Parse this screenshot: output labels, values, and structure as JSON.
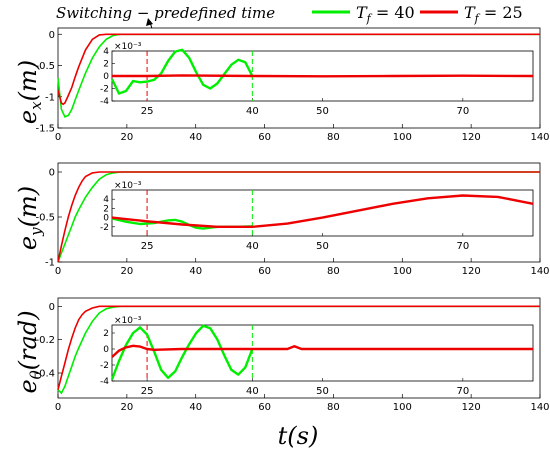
{
  "colors": {
    "green": "#00ee00",
    "red": "#ee0000"
  },
  "legend": {
    "annotation": "Switching − predefined time",
    "items": [
      {
        "label": "T_f = 40",
        "tex_main": "T",
        "tex_sub": "f",
        "tex_rest": " = 40",
        "color": "#00ee00"
      },
      {
        "label": "T_f = 25",
        "tex_main": "T",
        "tex_sub": "f",
        "tex_rest": " = 25",
        "color": "#ee0000"
      }
    ]
  },
  "xlabel": "t(s)",
  "chart_data": [
    {
      "type": "line",
      "ylabel": "e_x(m)",
      "ylabel_main": "e",
      "ylabel_sub": "x",
      "ylabel_rest": "(m)",
      "xlim": [
        0,
        140
      ],
      "ylim": [
        -1.5,
        0.1
      ],
      "xticks": [
        0,
        20,
        40,
        60,
        80,
        100,
        120,
        140
      ],
      "xticklabels": [
        "0",
        "20",
        "40",
        "60",
        "80",
        "100",
        "120",
        "140"
      ],
      "yticks": [
        -1.5,
        -1,
        -0.5,
        0
      ],
      "yticklabels": [
        "-1.5",
        "-1",
        "-0.5",
        "0"
      ],
      "series": [
        {
          "name": "T_f = 40",
          "color": "#00ee00",
          "x": [
            0,
            1,
            2,
            3,
            4,
            5,
            6,
            8,
            10,
            12,
            14,
            16,
            18,
            20,
            140
          ],
          "y": [
            -0.7,
            -1.2,
            -1.32,
            -1.3,
            -1.2,
            -1.05,
            -0.9,
            -0.62,
            -0.38,
            -0.2,
            -0.08,
            -0.02,
            0,
            0,
            0
          ]
        },
        {
          "name": "T_f = 25",
          "color": "#ee0000",
          "x": [
            0,
            1,
            1.5,
            2,
            3,
            4,
            5,
            6,
            8,
            10,
            12,
            14,
            140
          ],
          "y": [
            -0.9,
            -1.1,
            -1.12,
            -1.1,
            -0.98,
            -0.85,
            -0.68,
            -0.52,
            -0.25,
            -0.08,
            -0.01,
            0,
            0
          ]
        }
      ],
      "inset": {
        "xlim": [
          20,
          80
        ],
        "ylim": [
          -4,
          4
        ],
        "exponent": "×10⁻³",
        "xticks": [
          25,
          40,
          50,
          70
        ],
        "xticklabels": [
          "25",
          "40",
          "50",
          "70"
        ],
        "yticks": [
          -4,
          -2,
          0,
          2,
          4
        ],
        "yticklabels": [
          "-4",
          "-2",
          "0",
          "2",
          "4"
        ],
        "marks": [
          {
            "x": 25,
            "color": "#ee0000"
          },
          {
            "x": 40,
            "color": "#00ee00"
          }
        ],
        "series": [
          {
            "color": "#00ee00",
            "x": [
              20,
              21,
              22,
              23,
              24,
              25,
              26,
              27,
              28,
              29,
              30,
              31,
              32,
              33,
              34,
              35,
              36,
              37,
              38,
              39,
              40
            ],
            "y": [
              -0.5,
              -2.8,
              -2.4,
              -0.8,
              -1,
              -0.9,
              -0.6,
              0.4,
              2.4,
              3.9,
              4.2,
              2.9,
              0.6,
              -1.4,
              -2,
              -1.2,
              0.3,
              1.8,
              2.6,
              2.2,
              0
            ]
          },
          {
            "color": "#ee0000",
            "x": [
              20,
              25,
              30,
              40,
              50,
              60,
              70,
              80
            ],
            "y": [
              0,
              0,
              0.1,
              0,
              -0.05,
              0,
              0.05,
              0
            ]
          }
        ]
      }
    },
    {
      "type": "line",
      "ylabel": "e_y(m)",
      "ylabel_main": "e",
      "ylabel_sub": "y",
      "ylabel_rest": "(m)",
      "xlim": [
        0,
        140
      ],
      "ylim": [
        -1,
        0.1
      ],
      "xticks": [
        0,
        20,
        40,
        60,
        80,
        100,
        120,
        140
      ],
      "xticklabels": [
        "0",
        "20",
        "40",
        "60",
        "80",
        "100",
        "120",
        "140"
      ],
      "yticks": [
        -1,
        -0.5,
        0
      ],
      "yticklabels": [
        "-1",
        "-0.5",
        "0"
      ],
      "series": [
        {
          "name": "T_f = 40",
          "color": "#00ee00",
          "x": [
            0,
            1,
            2,
            3,
            4,
            5,
            6,
            8,
            10,
            12,
            14,
            16,
            18,
            20,
            140
          ],
          "y": [
            -1,
            -0.9,
            -0.8,
            -0.7,
            -0.6,
            -0.5,
            -0.42,
            -0.28,
            -0.17,
            -0.08,
            -0.03,
            -0.01,
            0,
            0,
            0
          ]
        },
        {
          "name": "T_f = 25",
          "color": "#ee0000",
          "x": [
            0,
            1,
            2,
            3,
            4,
            5,
            6,
            7,
            8,
            10,
            12,
            14,
            140
          ],
          "y": [
            -1,
            -0.82,
            -0.65,
            -0.5,
            -0.37,
            -0.26,
            -0.17,
            -0.1,
            -0.05,
            -0.01,
            0,
            0,
            0
          ]
        }
      ],
      "inset": {
        "xlim": [
          20,
          80
        ],
        "ylim": [
          -4,
          6
        ],
        "exponent": "×10⁻³",
        "xticks": [
          25,
          40,
          50,
          70
        ],
        "xticklabels": [
          "25",
          "40",
          "50",
          "70"
        ],
        "yticks": [
          -2,
          0,
          2,
          4
        ],
        "yticklabels": [
          "-2",
          "0",
          "2",
          "4"
        ],
        "marks": [
          {
            "x": 25,
            "color": "#ee0000"
          },
          {
            "x": 40,
            "color": "#00ee00"
          }
        ],
        "series": [
          {
            "color": "#00ee00",
            "x": [
              20,
              22,
              24,
              26,
              28,
              29,
              30,
              31,
              32,
              33,
              34,
              35,
              36,
              38,
              40
            ],
            "y": [
              -0.2,
              -0.9,
              -1.4,
              -1.2,
              -0.6,
              -0.5,
              -0.9,
              -1.6,
              -2.2,
              -2.4,
              -2.2,
              -2.0,
              -2.0,
              -2.0,
              -1.9
            ]
          },
          {
            "color": "#ee0000",
            "x": [
              20,
              25,
              30,
              35,
              40,
              45,
              50,
              55,
              60,
              65,
              70,
              75,
              80
            ],
            "y": [
              0,
              -0.8,
              -1.5,
              -2,
              -2,
              -1.3,
              0,
              1.5,
              3,
              4.2,
              4.8,
              4.5,
              3
            ]
          }
        ]
      }
    },
    {
      "type": "line",
      "ylabel": "e_θ(rad)",
      "ylabel_main": "e",
      "ylabel_sub": "θ",
      "ylabel_rest": "(rad)",
      "xlim": [
        0,
        140
      ],
      "ylim": [
        -0.55,
        0.05
      ],
      "xticks": [
        0,
        20,
        40,
        60,
        80,
        100,
        120,
        140
      ],
      "xticklabels": [
        "0",
        "20",
        "40",
        "60",
        "80",
        "100",
        "120",
        "140"
      ],
      "yticks": [
        -0.4,
        -0.2,
        0
      ],
      "yticklabels": [
        "-0.4",
        "-0.2",
        "0"
      ],
      "series": [
        {
          "name": "T_f = 40",
          "color": "#00ee00",
          "x": [
            0,
            1,
            2,
            3,
            4,
            5,
            6,
            8,
            10,
            12,
            14,
            16,
            18,
            20,
            140
          ],
          "y": [
            -0.5,
            -0.52,
            -0.48,
            -0.42,
            -0.36,
            -0.3,
            -0.25,
            -0.16,
            -0.09,
            -0.04,
            -0.015,
            -0.005,
            0,
            0,
            0
          ]
        },
        {
          "name": "T_f = 25",
          "color": "#ee0000",
          "x": [
            0,
            1,
            2,
            3,
            4,
            5,
            6,
            7,
            8,
            10,
            12,
            140
          ],
          "y": [
            -0.5,
            -0.42,
            -0.34,
            -0.26,
            -0.19,
            -0.13,
            -0.08,
            -0.05,
            -0.03,
            -0.01,
            0,
            0
          ]
        }
      ],
      "inset": {
        "xlim": [
          20,
          80
        ],
        "ylim": [
          -4,
          3
        ],
        "exponent": "×10⁻³",
        "xticks": [
          25,
          40,
          50,
          70
        ],
        "xticklabels": [
          "25",
          "40",
          "50",
          "70"
        ],
        "yticks": [
          -4,
          -2,
          0,
          2
        ],
        "yticklabels": [
          "-4",
          "-2",
          "0",
          "2"
        ],
        "marks": [
          {
            "x": 25,
            "color": "#ee0000"
          },
          {
            "x": 40,
            "color": "#00ee00"
          }
        ],
        "series": [
          {
            "color": "#00ee00",
            "x": [
              20,
              21,
              22,
              23,
              24,
              25,
              26,
              27,
              28,
              29,
              30,
              31,
              32,
              33,
              34,
              35,
              36,
              37,
              38,
              39,
              40
            ],
            "y": [
              -3.8,
              -1.5,
              0.5,
              2,
              2.7,
              1.8,
              -0.3,
              -2.6,
              -3.6,
              -2.8,
              -1,
              0.6,
              2,
              2.9,
              2.6,
              1.2,
              -0.8,
              -2.6,
              -3.2,
              -2.3,
              0
            ]
          },
          {
            "color": "#ee0000",
            "x": [
              20,
              21,
              22,
              23,
              24,
              25,
              26,
              30,
              40,
              45,
              46,
              47,
              50,
              60,
              70,
              80
            ],
            "y": [
              -1,
              -0.2,
              0.2,
              0.4,
              0.3,
              0,
              -0.1,
              0,
              0,
              0,
              0.35,
              0,
              0,
              0,
              0,
              0
            ]
          }
        ]
      }
    }
  ]
}
